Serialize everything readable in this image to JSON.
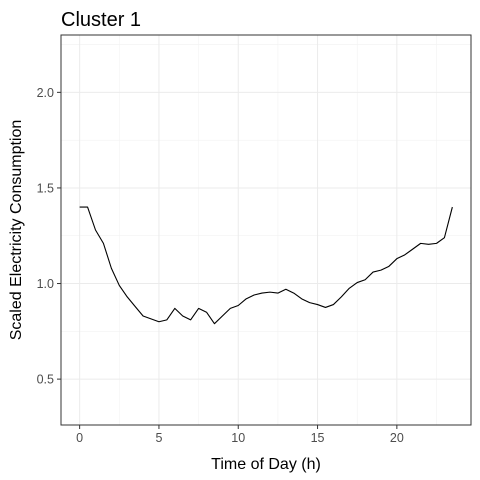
{
  "chart_data": {
    "type": "line",
    "title": "Cluster 1",
    "xlabel": "Time of Day (h)",
    "ylabel": "Scaled Electricity Consumption",
    "xlim": [
      -1.175,
      24.675
    ],
    "ylim": [
      0.26,
      2.3
    ],
    "x_ticks": [
      0,
      5,
      10,
      15,
      20
    ],
    "x_tick_labels": [
      "0",
      "5",
      "10",
      "15",
      "20"
    ],
    "y_ticks": [
      0.5,
      1.0,
      1.5,
      2.0
    ],
    "y_tick_labels": [
      "0.5",
      "1.0",
      "1.5",
      "2.0"
    ],
    "grid": true,
    "line_color": "#000000",
    "series": [
      {
        "x": [
          0,
          0.5,
          1,
          1.5,
          2,
          2.5,
          3,
          3.5,
          4,
          4.5,
          5,
          5.5,
          6,
          6.5,
          7,
          7.5,
          8,
          8.5,
          9,
          9.5,
          10,
          10.5,
          11,
          11.5,
          12,
          12.5,
          13,
          13.5,
          14,
          14.5,
          15,
          15.5,
          16,
          16.5,
          17,
          17.5,
          18,
          18.5,
          19,
          19.5,
          20,
          20.5,
          21,
          21.5,
          22,
          22.5,
          23,
          23.5
        ],
        "y": [
          1.4,
          1.4,
          1.28,
          1.21,
          1.08,
          0.99,
          0.93,
          0.88,
          0.83,
          0.815,
          0.8,
          0.81,
          0.87,
          0.83,
          0.81,
          0.87,
          0.85,
          0.79,
          0.83,
          0.87,
          0.885,
          0.92,
          0.94,
          0.95,
          0.955,
          0.95,
          0.97,
          0.95,
          0.92,
          0.9,
          0.89,
          0.875,
          0.89,
          0.93,
          0.975,
          1.005,
          1.02,
          1.06,
          1.07,
          1.09,
          1.13,
          1.15,
          1.18,
          1.21,
          1.205,
          1.21,
          1.24,
          1.4
        ]
      }
    ]
  }
}
